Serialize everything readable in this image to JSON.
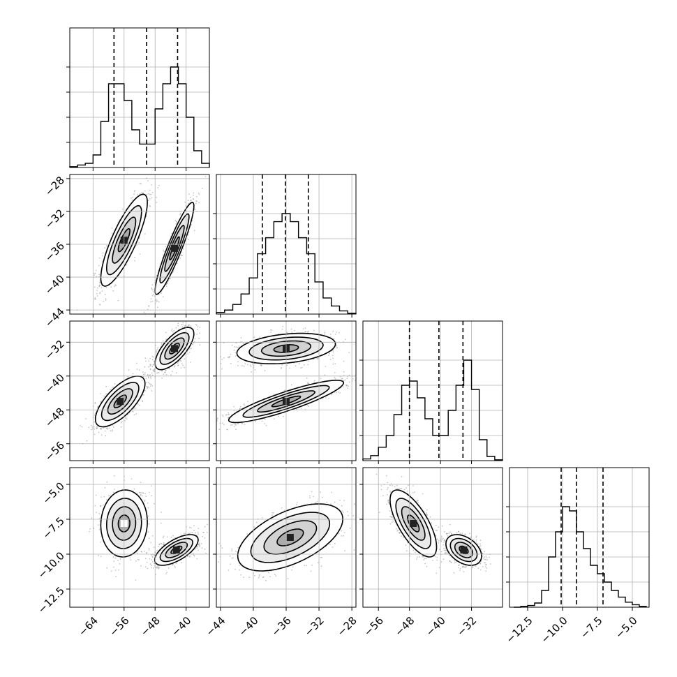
{
  "chart_data": {
    "type": "corner",
    "grid": true,
    "parameters": [
      {
        "range": [
          -70,
          -34
        ],
        "ticks": [
          -64,
          -56,
          -48,
          -40
        ]
      },
      {
        "range": [
          -44.5,
          -27.5
        ],
        "ticks": [
          -44,
          -40,
          -36,
          -32,
          -28
        ]
      },
      {
        "range": [
          -60,
          -35
        ],
        "ticks": [
          -56,
          -48,
          -40,
          -32
        ]
      },
      {
        "range": [
          -13,
          -3.2
        ],
        "ticks": [
          -12.5,
          -10.0,
          -7.5,
          -5.0
        ]
      }
    ],
    "axis_limits": {
      "p0": [
        -70,
        -34
      ],
      "p1": [
        -44.5,
        -27.5
      ],
      "p2_hist": [
        -60,
        -24
      ],
      "p2_y": [
        -60,
        -27
      ],
      "p3": [
        -13.8,
        -3.8
      ]
    },
    "tick_labels": {
      "p0": [
        "−64",
        "−56",
        "−48",
        "−40"
      ],
      "p1": [
        "−44",
        "−40",
        "−36",
        "−32",
        "−28"
      ],
      "p2": [
        "−56",
        "−48",
        "−40",
        "−32"
      ],
      "p3": [
        "−12.5",
        "−10.0",
        "−7.5",
        "−5.0"
      ]
    },
    "histograms": [
      {
        "parameter": 0,
        "edges": [
          -70,
          -68,
          -66,
          -64,
          -62,
          -60,
          -58,
          -56,
          -54,
          -52,
          -50,
          -48,
          -46,
          -44,
          -42,
          -40,
          -38,
          -36,
          -34
        ],
        "counts": [
          1,
          3,
          5,
          15,
          55,
          100,
          100,
          80,
          45,
          28,
          28,
          70,
          100,
          120,
          100,
          60,
          20,
          5
        ],
        "quantiles": [
          -58.6,
          -50.2,
          -42.2
        ]
      },
      {
        "parameter": 1,
        "edges": [
          -44.5,
          -43.5,
          -42.5,
          -41.5,
          -40.5,
          -39.5,
          -38.5,
          -37.5,
          -36.5,
          -35.5,
          -34.5,
          -33.5,
          -32.5,
          -31.5,
          -30.5,
          -29.5,
          -28.5,
          -27.5
        ],
        "counts": [
          2,
          5,
          12,
          25,
          45,
          75,
          95,
          115,
          125,
          115,
          95,
          75,
          40,
          20,
          10,
          4,
          1
        ],
        "quantiles": [
          -38.9,
          -36.1,
          -33.3
        ]
      },
      {
        "parameter": 2,
        "edges": [
          -60,
          -58,
          -56,
          -54,
          -52,
          -50,
          -48,
          -46,
          -44,
          -42,
          -40,
          -38,
          -36,
          -34,
          -32,
          -30,
          -28,
          -26,
          -24
        ],
        "counts": [
          2,
          6,
          16,
          30,
          55,
          90,
          95,
          75,
          50,
          30,
          30,
          60,
          90,
          120,
          85,
          25,
          5,
          1
        ],
        "quantiles": [
          -48.0,
          -40.4,
          -34.2
        ]
      },
      {
        "parameter": 3,
        "edges": [
          -13.5,
          -13.0,
          -12.5,
          -12.0,
          -11.5,
          -11.0,
          -10.5,
          -10.0,
          -9.5,
          -9.0,
          -8.5,
          -8.0,
          -7.5,
          -7.0,
          -6.5,
          -6.0,
          -5.5,
          -5.0,
          -4.5,
          -4.0
        ],
        "counts": [
          0,
          1,
          2,
          5,
          20,
          60,
          90,
          120,
          115,
          90,
          70,
          50,
          40,
          30,
          20,
          12,
          6,
          3,
          1
        ],
        "quantiles": [
          -10.1,
          -9.0,
          -7.1
        ]
      }
    ],
    "pairs": [
      {
        "x": 0,
        "y": 1,
        "modes": [
          {
            "center": [
              -56,
              -35.5
            ],
            "sd": [
              3.0,
              2.8
            ],
            "corr": 0.82
          },
          {
            "center": [
              -43,
              -36.5
            ],
            "sd": [
              2.5,
              2.8
            ],
            "corr": 0.92
          }
        ]
      },
      {
        "x": 0,
        "y": 2,
        "modes": [
          {
            "center": [
              -57,
              -46.0
            ],
            "sd": [
              3.2,
              3.0
            ],
            "corr": 0.7
          },
          {
            "center": [
              -43,
              -33.5
            ],
            "sd": [
              2.5,
              2.5
            ],
            "corr": 0.7
          }
        ]
      },
      {
        "x": 1,
        "y": 2,
        "modes": [
          {
            "center": [
              -36,
              -33.5
            ],
            "sd": [
              3.0,
              1.8
            ],
            "corr": 0.3
          },
          {
            "center": [
              -36,
              -46.0
            ],
            "sd": [
              3.5,
              2.5
            ],
            "corr": 0.88
          }
        ]
      },
      {
        "x": 0,
        "y": 3,
        "modes": [
          {
            "center": [
              -56,
              -7.8
            ],
            "sd": [
              3.0,
              1.2
            ],
            "corr": 0.05
          },
          {
            "center": [
              -42.5,
              -9.7
            ],
            "sd": [
              2.8,
              0.55
            ],
            "corr": 0.65
          }
        ]
      },
      {
        "x": 1,
        "y": 3,
        "modes": [
          {
            "center": [
              -35.5,
              -8.8
            ],
            "sd": [
              3.2,
              1.2
            ],
            "corr": 0.55
          }
        ]
      },
      {
        "x": 2,
        "y": 3,
        "modes": [
          {
            "center": [
              -47,
              -7.8
            ],
            "sd": [
              3.0,
              1.2
            ],
            "corr": -0.7
          },
          {
            "center": [
              -34,
              -9.7
            ],
            "sd": [
              2.3,
              0.55
            ],
            "corr": -0.4
          }
        ]
      }
    ]
  }
}
